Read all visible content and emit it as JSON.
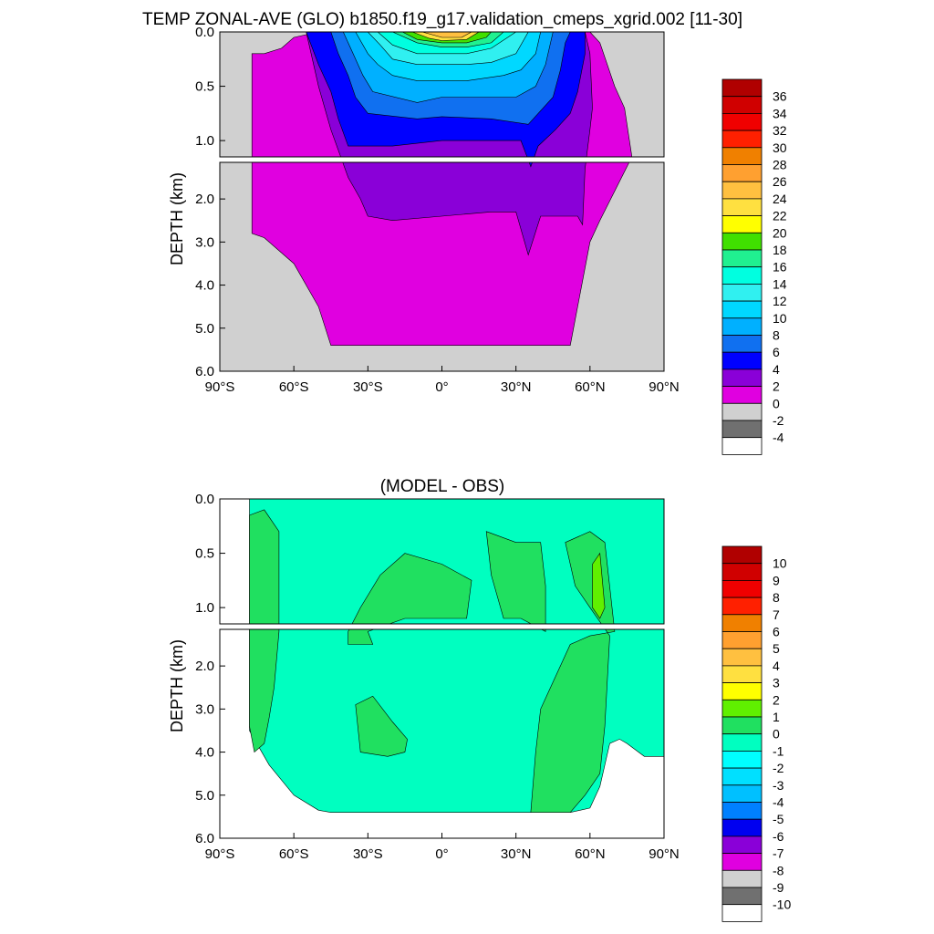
{
  "chart_data": [
    {
      "type": "heatmap",
      "title": "TEMP ZONAL-AVE (GLO) b1850.f19_g17.validation_cmeps_xgrid.002 [11-30]",
      "xlabel": "",
      "ylabel": "DEPTH (km)",
      "x_ticks": [
        "90°S",
        "60°S",
        "30°S",
        "0°",
        "30°N",
        "60°N",
        "90°N"
      ],
      "x_tick_values": [
        -90,
        -60,
        -30,
        0,
        30,
        60,
        90
      ],
      "xlim": [
        -90,
        90
      ],
      "y_upper_ticks": [
        "0.0",
        "0.5",
        "1.0"
      ],
      "y_upper_values": [
        0,
        0.5,
        1.0
      ],
      "y_lower_ticks": [
        "2.0",
        "3.0",
        "4.0",
        "5.0",
        "6.0"
      ],
      "y_lower_values": [
        2,
        3,
        4,
        5,
        6
      ],
      "ylim": [
        0,
        6
      ],
      "colorbar_labels": [
        "36",
        "34",
        "32",
        "30",
        "28",
        "26",
        "24",
        "22",
        "20",
        "18",
        "16",
        "14",
        "12",
        "10",
        "8",
        "6",
        "4",
        "2",
        "0",
        "-2",
        "-4"
      ],
      "colorbar_colors": [
        "#B00000",
        "#D00000",
        "#F00000",
        "#FF2000",
        "#F08000",
        "#FFA030",
        "#FFC040",
        "#FFE040",
        "#FFFF00",
        "#40E000",
        "#20F090",
        "#00FFE0",
        "#30F0F0",
        "#00D8FF",
        "#00B0FF",
        "#1070F0",
        "#0000FF",
        "#8A00D8",
        "#E000E0",
        "#D0D0D0",
        "#707070",
        "#FFFFFF"
      ],
      "land_color": "#D0D0D0",
      "bands": [
        {
          "color": "#E000E0",
          "top": [
            [
              -77,
              0.2
            ],
            [
              -72,
              0.2
            ],
            [
              -65,
              0.15
            ],
            [
              -60,
              0.05
            ],
            [
              -50,
              0
            ],
            [
              60,
              0
            ],
            [
              64,
              0.1
            ],
            [
              70,
              0.5
            ],
            [
              74,
              0.7
            ],
            [
              76,
              1.0
            ],
            [
              77,
              1.15
            ],
            [
              64,
              2.5
            ],
            [
              60,
              3.0
            ],
            [
              52,
              5.4
            ],
            [
              -45,
              5.4
            ],
            [
              -50,
              4.5
            ],
            [
              -60,
              3.5
            ],
            [
              -72,
              2.9
            ],
            [
              -77,
              2.8
            ]
          ]
        },
        {
          "color": "#8A00D8",
          "top": [
            [
              -60,
              0
            ],
            [
              -55,
              0
            ],
            [
              -50,
              0.5
            ],
            [
              -45,
              0.9
            ],
            [
              -38,
              1.5
            ],
            [
              -33,
              2.0
            ],
            [
              -30,
              2.4
            ],
            [
              -20,
              2.5
            ],
            [
              0,
              2.4
            ],
            [
              20,
              2.3
            ],
            [
              30,
              2.3
            ],
            [
              35,
              3.3
            ],
            [
              40,
              2.4
            ],
            [
              50,
              2.4
            ],
            [
              55,
              2.4
            ],
            [
              57,
              2.6
            ],
            [
              58,
              1.3
            ],
            [
              60,
              0.9
            ],
            [
              61,
              0.7
            ],
            [
              60,
              0.2
            ],
            [
              58,
              0
            ]
          ]
        },
        {
          "color": "#0000FF",
          "top": [
            [
              -55,
              0
            ],
            [
              -50,
              0.3
            ],
            [
              -45,
              0.55
            ],
            [
              -42,
              0.8
            ],
            [
              -38,
              1.05
            ],
            [
              -20,
              1.05
            ],
            [
              0,
              1.0
            ],
            [
              20,
              1.0
            ],
            [
              32,
              1.0
            ],
            [
              36,
              1.25
            ],
            [
              39,
              1.05
            ],
            [
              46,
              0.9
            ],
            [
              52,
              0.75
            ],
            [
              55,
              0.55
            ],
            [
              58,
              0.2
            ],
            [
              58,
              0
            ]
          ]
        },
        {
          "color": "#1070F0",
          "top": [
            [
              -45,
              0
            ],
            [
              -42,
              0.2
            ],
            [
              -38,
              0.4
            ],
            [
              -35,
              0.6
            ],
            [
              -30,
              0.75
            ],
            [
              -10,
              0.8
            ],
            [
              0,
              0.78
            ],
            [
              20,
              0.8
            ],
            [
              35,
              0.85
            ],
            [
              45,
              0.6
            ],
            [
              48,
              0.35
            ],
            [
              50,
              0.1
            ],
            [
              52,
              0
            ]
          ]
        },
        {
          "color": "#00B0FF",
          "top": [
            [
              -40,
              0
            ],
            [
              -36,
              0.2
            ],
            [
              -32,
              0.4
            ],
            [
              -28,
              0.55
            ],
            [
              -10,
              0.65
            ],
            [
              0,
              0.6
            ],
            [
              20,
              0.6
            ],
            [
              30,
              0.6
            ],
            [
              38,
              0.5
            ],
            [
              42,
              0.3
            ],
            [
              45,
              0
            ]
          ]
        },
        {
          "color": "#00D8FF",
          "top": [
            [
              -35,
              0
            ],
            [
              -30,
              0.2
            ],
            [
              -26,
              0.3
            ],
            [
              -20,
              0.4
            ],
            [
              -10,
              0.45
            ],
            [
              0,
              0.45
            ],
            [
              10,
              0.45
            ],
            [
              25,
              0.4
            ],
            [
              32,
              0.35
            ],
            [
              38,
              0.2
            ],
            [
              40,
              0
            ]
          ]
        },
        {
          "color": "#30F0F0",
          "top": [
            [
              -30,
              0
            ],
            [
              -25,
              0.12
            ],
            [
              -20,
              0.25
            ],
            [
              -10,
              0.3
            ],
            [
              0,
              0.3
            ],
            [
              10,
              0.3
            ],
            [
              20,
              0.28
            ],
            [
              30,
              0.2
            ],
            [
              35,
              0
            ]
          ]
        },
        {
          "color": "#00FFE0",
          "top": [
            [
              -26,
              0
            ],
            [
              -20,
              0.12
            ],
            [
              -10,
              0.2
            ],
            [
              0,
              0.2
            ],
            [
              10,
              0.2
            ],
            [
              20,
              0.15
            ],
            [
              30,
              0
            ]
          ]
        },
        {
          "color": "#20F090",
          "top": [
            [
              -20,
              0
            ],
            [
              -10,
              0.1
            ],
            [
              0,
              0.14
            ],
            [
              10,
              0.14
            ],
            [
              20,
              0.1
            ],
            [
              25,
              0
            ]
          ]
        },
        {
          "color": "#40E000",
          "top": [
            [
              -16,
              0
            ],
            [
              -10,
              0.07
            ],
            [
              0,
              0.1
            ],
            [
              10,
              0.1
            ],
            [
              18,
              0.05
            ],
            [
              20,
              0
            ]
          ]
        },
        {
          "color": "#FFE040",
          "top": [
            [
              -12,
              0
            ],
            [
              -5,
              0.06
            ],
            [
              0,
              0.08
            ],
            [
              10,
              0.07
            ],
            [
              15,
              0
            ]
          ]
        },
        {
          "color": "#FFC040",
          "top": [
            [
              -8,
              0
            ],
            [
              0,
              0.05
            ],
            [
              8,
              0.05
            ],
            [
              12,
              0
            ]
          ]
        }
      ]
    },
    {
      "type": "heatmap",
      "title": "(MODEL - OBS)",
      "xlabel": "",
      "ylabel": "DEPTH (km)",
      "x_ticks": [
        "90°S",
        "60°S",
        "30°S",
        "0°",
        "30°N",
        "60°N",
        "90°N"
      ],
      "x_tick_values": [
        -90,
        -60,
        -30,
        0,
        30,
        60,
        90
      ],
      "xlim": [
        -90,
        90
      ],
      "y_upper_ticks": [
        "0.0",
        "0.5",
        "1.0"
      ],
      "y_upper_values": [
        0,
        0.5,
        1.0
      ],
      "y_lower_ticks": [
        "2.0",
        "3.0",
        "4.0",
        "5.0",
        "6.0"
      ],
      "y_lower_values": [
        2,
        3,
        4,
        5,
        6
      ],
      "ylim": [
        0,
        6
      ],
      "colorbar_labels": [
        "10",
        "9",
        "8",
        "7",
        "6",
        "5",
        "4",
        "3",
        "2",
        "1",
        "0",
        "-1",
        "-2",
        "-3",
        "-4",
        "-5",
        "-6",
        "-7",
        "-8",
        "-9",
        "-10"
      ],
      "colorbar_colors": [
        "#B00000",
        "#D00000",
        "#F00000",
        "#FF2000",
        "#F08000",
        "#FFA030",
        "#FFC040",
        "#FFE040",
        "#FFFF00",
        "#60F000",
        "#20E060",
        "#00FFC0",
        "#00FFFF",
        "#00E0FF",
        "#00C0FF",
        "#0080FF",
        "#0000F0",
        "#8A00D8",
        "#E000E0",
        "#D0D0D0",
        "#707070",
        "#FFFFFF"
      ],
      "background_band": {
        "color": "#00FFC0",
        "top": [
          [
            -78,
            0
          ],
          [
            90,
            0
          ],
          [
            90,
            4.1
          ],
          [
            82,
            4.1
          ],
          [
            75,
            3.8
          ],
          [
            72,
            3.7
          ],
          [
            68,
            3.8
          ],
          [
            64,
            4.8
          ],
          [
            60,
            5.3
          ],
          [
            52,
            5.4
          ],
          [
            -45,
            5.4
          ],
          [
            -50,
            5.35
          ],
          [
            -60,
            5.0
          ],
          [
            -70,
            4.3
          ],
          [
            -78,
            3.5
          ]
        ]
      },
      "bands": [
        {
          "color": "#20E060",
          "top": [
            [
              -78,
              0.15
            ],
            [
              -72,
              0.1
            ],
            [
              -66,
              0.3
            ],
            [
              -66,
              1.2
            ],
            [
              -68,
              2.5
            ],
            [
              -70,
              3.2
            ],
            [
              -72,
              3.8
            ],
            [
              -76,
              4.0
            ],
            [
              -78,
              3.4
            ]
          ]
        },
        {
          "color": "#20E060",
          "top": [
            [
              -35,
              2.9
            ],
            [
              -28,
              2.7
            ],
            [
              -20,
              3.3
            ],
            [
              -14,
              3.7
            ],
            [
              -15,
              4.0
            ],
            [
              -22,
              4.1
            ],
            [
              -33,
              4.0
            ]
          ]
        },
        {
          "color": "#20E060",
          "top": [
            [
              -38,
              1.2
            ],
            [
              -33,
              1.0
            ],
            [
              -25,
              0.7
            ],
            [
              -15,
              0.5
            ],
            [
              0,
              0.6
            ],
            [
              12,
              0.75
            ],
            [
              10,
              1.1
            ],
            [
              -15,
              1.1
            ],
            [
              -30,
              1.2
            ],
            [
              -28,
              1.5
            ],
            [
              -38,
              1.5
            ]
          ]
        },
        {
          "color": "#20E060",
          "top": [
            [
              18,
              0.3
            ],
            [
              30,
              0.4
            ],
            [
              40,
              0.4
            ],
            [
              42,
              0.8
            ],
            [
              42,
              1.2
            ],
            [
              32,
              1.1
            ],
            [
              25,
              1.1
            ],
            [
              20,
              0.7
            ]
          ]
        },
        {
          "color": "#20E060",
          "top": [
            [
              50,
              0.4
            ],
            [
              60,
              0.3
            ],
            [
              66,
              0.4
            ],
            [
              70,
              1.2
            ],
            [
              60,
              1.3
            ],
            [
              52,
              1.5
            ],
            [
              40,
              3.0
            ],
            [
              38,
              4.0
            ],
            [
              36,
              5.4
            ],
            [
              52,
              5.4
            ],
            [
              58,
              5.0
            ],
            [
              64,
              4.5
            ],
            [
              66,
              3.4
            ],
            [
              68,
              1.3
            ],
            [
              60,
              1.0
            ],
            [
              54,
              0.8
            ]
          ]
        },
        {
          "color": "#60F000",
          "top": [
            [
              61,
              0.6
            ],
            [
              64,
              0.5
            ],
            [
              66,
              1.0
            ],
            [
              64,
              1.1
            ],
            [
              61,
              1.0
            ]
          ]
        }
      ]
    }
  ]
}
